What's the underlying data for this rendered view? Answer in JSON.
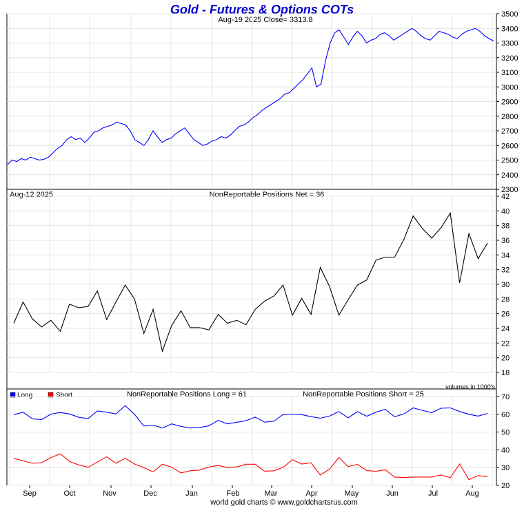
{
  "header": {
    "title": "Gold - Futures & Options COTs",
    "price_info": "Aug-19  2025   Close= 3313.8"
  },
  "footer": {
    "credit": "world gold charts © www.goldchartsrus.com"
  },
  "colors": {
    "title": "#0000cc",
    "blue": "#0000ff",
    "red": "#ff0000",
    "black": "#000000",
    "grid": "#e4e4e4"
  },
  "x_axis": {
    "months": [
      "Sep",
      "Oct",
      "Nov",
      "Dec",
      "Jan",
      "Feb",
      "Mar",
      "Apr",
      "May",
      "Jun",
      "Jul",
      "Aug"
    ]
  },
  "chart_data": [
    {
      "type": "line",
      "title": "Aug-19  2025   Close= 3313.8",
      "ylim": [
        2300,
        3500
      ],
      "yticks": [
        2300,
        2400,
        2500,
        2600,
        2700,
        2800,
        2900,
        3000,
        3100,
        3200,
        3300,
        3400,
        3500
      ],
      "series": [
        {
          "name": "",
          "color": "#0000ff",
          "values": [
            2470,
            2500,
            2490,
            2510,
            2500,
            2520,
            2510,
            2500,
            2505,
            2520,
            2550,
            2580,
            2600,
            2640,
            2660,
            2640,
            2650,
            2620,
            2650,
            2690,
            2700,
            2720,
            2730,
            2740,
            2760,
            2750,
            2740,
            2700,
            2640,
            2620,
            2600,
            2640,
            2700,
            2660,
            2620,
            2640,
            2650,
            2680,
            2700,
            2720,
            2680,
            2640,
            2620,
            2600,
            2610,
            2630,
            2640,
            2660,
            2650,
            2670,
            2700,
            2730,
            2740,
            2760,
            2790,
            2810,
            2840,
            2860,
            2880,
            2900,
            2920,
            2950,
            2960,
            2990,
            3020,
            3050,
            3090,
            3130,
            3000,
            3020,
            3180,
            3300,
            3370,
            3390,
            3340,
            3290,
            3340,
            3380,
            3350,
            3300,
            3320,
            3330,
            3360,
            3370,
            3350,
            3320,
            3340,
            3360,
            3380,
            3400,
            3380,
            3350,
            3330,
            3320,
            3350,
            3380,
            3370,
            3360,
            3340,
            3330,
            3360,
            3380,
            3390,
            3400,
            3380,
            3350,
            3330,
            3314
          ]
        }
      ]
    },
    {
      "type": "line",
      "title": "NonReportable Positions Net = 36",
      "date_label": "Aug-12  2025",
      "note": "volumes in 1000's",
      "ylim": [
        18,
        42
      ],
      "yticks": [
        18,
        20,
        22,
        24,
        26,
        28,
        30,
        32,
        34,
        36,
        38,
        40,
        42
      ],
      "series": [
        {
          "name": "",
          "color": "#000000",
          "values": [
            24.7,
            27.6,
            25.3,
            24.2,
            25.1,
            23.6,
            27.3,
            26.8,
            27.0,
            29.1,
            25.2,
            27.6,
            29.9,
            28.0,
            23.3,
            26.6,
            20.9,
            24.4,
            26.4,
            24.1,
            24.1,
            23.8,
            25.9,
            24.7,
            25.1,
            24.5,
            26.6,
            27.7,
            28.4,
            29.9,
            25.8,
            28.1,
            25.9,
            32.3,
            29.7,
            25.8,
            27.9,
            29.9,
            30.6,
            33.3,
            33.7,
            33.7,
            36.1,
            39.3,
            37.6,
            36.3,
            37.7,
            39.7,
            30.2,
            36.9,
            33.5,
            35.6
          ]
        }
      ]
    },
    {
      "type": "line",
      "title_long": "NonReportable Positions Long = 61",
      "title_short": "NonReportable Positions Short = 25",
      "ylim": [
        20,
        70
      ],
      "yticks": [
        20,
        30,
        40,
        50,
        60,
        70
      ],
      "series": [
        {
          "name": "Long",
          "color": "#0000ff",
          "values": [
            59.8,
            61.2,
            57.5,
            57.0,
            60.1,
            61.0,
            60.2,
            58.3,
            57.6,
            61.9,
            61.2,
            60.2,
            64.9,
            60.0,
            53.4,
            53.9,
            52.3,
            54.6,
            53.2,
            52.3,
            52.5,
            53.5,
            56.6,
            54.6,
            55.5,
            56.4,
            58.4,
            55.6,
            56.1,
            59.9,
            60.1,
            59.8,
            58.7,
            57.8,
            59.0,
            61.6,
            58.0,
            61.5,
            58.9,
            61.2,
            62.8,
            58.6,
            60.2,
            63.6,
            62.2,
            60.9,
            63.4,
            63.6,
            61.6,
            60.0,
            59.0,
            60.5
          ]
        },
        {
          "name": "Short",
          "color": "#ff0000",
          "values": [
            35.2,
            33.8,
            32.4,
            32.8,
            35.6,
            37.8,
            33.4,
            31.5,
            30.2,
            33.1,
            36.1,
            32.4,
            35.2,
            32.0,
            30.0,
            27.6,
            31.9,
            30.2,
            27.0,
            28.2,
            28.6,
            30.3,
            31.2,
            30.0,
            30.4,
            31.9,
            31.9,
            28.0,
            28.2,
            30.1,
            34.4,
            32.0,
            32.7,
            25.8,
            29.1,
            35.7,
            30.6,
            31.8,
            28.3,
            27.9,
            28.8,
            24.7,
            24.4,
            24.7,
            24.7,
            24.6,
            25.9,
            24.3,
            32.0,
            23.2,
            25.5,
            24.9
          ]
        }
      ]
    }
  ]
}
